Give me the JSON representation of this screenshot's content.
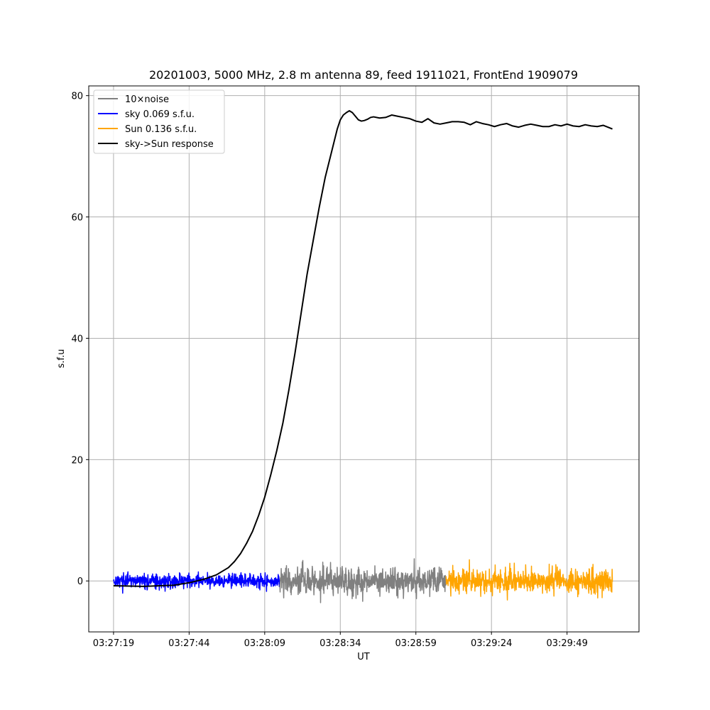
{
  "chart_data": {
    "type": "line",
    "title": "20201003, 5000 MHz, 2.8 m antenna 89, feed 1911021, FrontEnd 1909079",
    "xlabel": "UT",
    "ylabel": "s.f.u",
    "x_ticks": [
      "03:27:19",
      "03:27:44",
      "03:28:09",
      "03:28:34",
      "03:28:59",
      "03:29:24",
      "03:29:49"
    ],
    "x_range_seconds_from_first_tick": [
      -8.2,
      173.8
    ],
    "ylim": [
      -8.4,
      81.6
    ],
    "y_ticks": [
      0,
      20,
      40,
      60,
      80
    ],
    "grid": true,
    "legend_position": "top-left",
    "colors": {
      "noise": "#808080",
      "sky": "#0000ff",
      "sun": "#ffa500",
      "response": "#000000",
      "grid": "#b0b0b0"
    },
    "series": [
      {
        "name": "10×noise",
        "color": "#808080",
        "kind": "noise",
        "x_range_seconds": [
          55,
          110
        ],
        "amplitude_sfu": 4.5
      },
      {
        "name": "sky 0.069 s.f.u.",
        "color": "#0000ff",
        "kind": "noise",
        "x_range_seconds": [
          0,
          55
        ],
        "amplitude_sfu": 2.3
      },
      {
        "name": "Sun 0.136 s.f.u.",
        "color": "#ffa500",
        "kind": "noise",
        "x_range_seconds": [
          110,
          165
        ],
        "amplitude_sfu": 4.2
      },
      {
        "name": "sky->Sun response",
        "color": "#000000",
        "kind": "line",
        "x_seconds": [
          0,
          10,
          20,
          25,
          30,
          34,
          38,
          40,
          42,
          44,
          46,
          48,
          50,
          52,
          54,
          56,
          58,
          60,
          62,
          64,
          66,
          68,
          70,
          72,
          73,
          74,
          75,
          76,
          77,
          78,
          79,
          80,
          81,
          82,
          83,
          84,
          85,
          86,
          88,
          90,
          92,
          94,
          96,
          98,
          100,
          102,
          104,
          106,
          108,
          110,
          112,
          114,
          116,
          118,
          120,
          122,
          124,
          126,
          128,
          130,
          132,
          134,
          136,
          138,
          140,
          142,
          144,
          146,
          148,
          150,
          152,
          154,
          156,
          158,
          160,
          162,
          164,
          165
        ],
        "y_sfu": [
          -0.8,
          -0.9,
          -0.7,
          -0.3,
          0.3,
          1.0,
          2.2,
          3.2,
          4.5,
          6.2,
          8.2,
          10.8,
          13.8,
          17.5,
          21.5,
          26.0,
          31.5,
          37.5,
          44.0,
          50.5,
          56.0,
          61.5,
          66.5,
          70.5,
          72.5,
          74.5,
          76.0,
          76.8,
          77.2,
          77.5,
          77.2,
          76.6,
          76.0,
          75.8,
          75.9,
          76.1,
          76.4,
          76.5,
          76.3,
          76.4,
          76.8,
          76.6,
          76.4,
          76.2,
          75.8,
          75.6,
          76.2,
          75.5,
          75.3,
          75.5,
          75.7,
          75.7,
          75.6,
          75.2,
          75.7,
          75.4,
          75.2,
          74.9,
          75.2,
          75.4,
          75.0,
          74.8,
          75.1,
          75.3,
          75.1,
          74.9,
          74.9,
          75.2,
          75.0,
          75.3,
          75.0,
          74.9,
          75.2,
          75.0,
          74.9,
          75.1,
          74.7,
          74.5
        ]
      }
    ]
  }
}
